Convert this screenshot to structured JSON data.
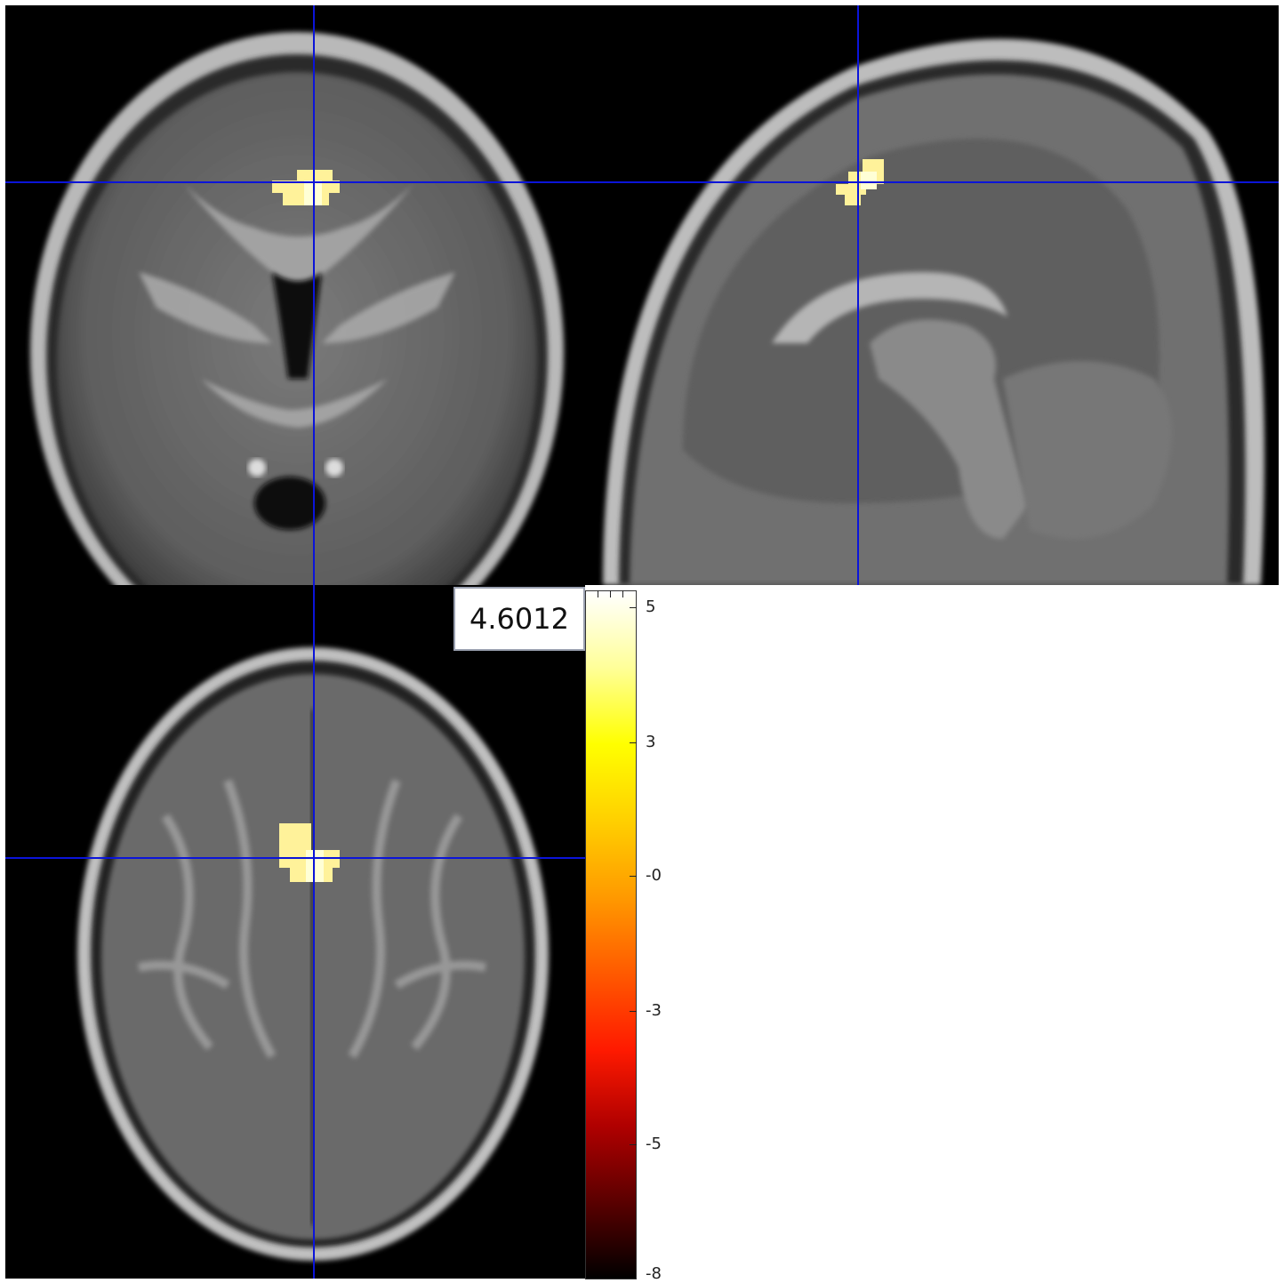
{
  "viewer": {
    "cursor_value": "4.6012"
  },
  "colorbar": {
    "colors": [
      "#000000",
      "#5a0000",
      "#b00000",
      "#ff1a00",
      "#ff5a00",
      "#ff9a00",
      "#ffd000",
      "#ffff00",
      "#ffff99",
      "#ffffff"
    ],
    "ticks": [
      "5",
      "3",
      "-0",
      "-3",
      "-5",
      "-8"
    ]
  },
  "overlay": {
    "activation_color": "#fff29a",
    "crosshair_color": "#0b14d9"
  }
}
